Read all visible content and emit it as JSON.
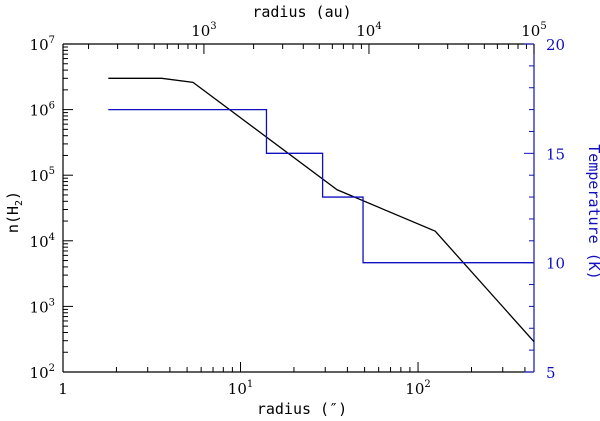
{
  "chart_data": {
    "type": "line",
    "xlabel": "radius (″)",
    "x2label": "radius (au)",
    "ylabel_left": {
      "base": "n(H",
      "sub": "2",
      "close": ")"
    },
    "ylabel_right": "Temperature (K)",
    "xscale": "log",
    "xlim": [
      1,
      450
    ],
    "ylim_left": [
      100,
      10000000
    ],
    "yscale_left": "log",
    "ylim_right": [
      5,
      20
    ],
    "x2scale": "log",
    "x2lim": [
      140,
      100000
    ],
    "x_ticks": [
      {
        "base": "1",
        "exp": ""
      },
      {
        "base": "10",
        "exp": "1"
      },
      {
        "base": "10",
        "exp": "2"
      }
    ],
    "x_tick_values": [
      1,
      10,
      100
    ],
    "x2_ticks": [
      {
        "base": "10",
        "exp": "3"
      },
      {
        "base": "10",
        "exp": "4"
      },
      {
        "base": "10",
        "exp": "5"
      }
    ],
    "x2_tick_values": [
      1000,
      10000,
      100000
    ],
    "y_left_ticks": [
      {
        "base": "10",
        "exp": "2"
      },
      {
        "base": "10",
        "exp": "3"
      },
      {
        "base": "10",
        "exp": "4"
      },
      {
        "base": "10",
        "exp": "5"
      },
      {
        "base": "10",
        "exp": "6"
      },
      {
        "base": "10",
        "exp": "7"
      }
    ],
    "y_left_tick_values": [
      100,
      1000,
      10000,
      100000,
      1000000,
      10000000
    ],
    "y_right_ticks": [
      "5",
      "10",
      "15",
      "20"
    ],
    "y_right_tick_values": [
      5,
      10,
      15,
      20
    ],
    "series": [
      {
        "axis": "left",
        "color": "#000000",
        "points": [
          [
            1.8,
            3000000
          ],
          [
            3.6,
            3000000
          ],
          [
            5.4,
            2600000
          ],
          [
            35,
            60000
          ],
          [
            125,
            14000
          ],
          [
            450,
            290
          ]
        ]
      },
      {
        "axis": "right",
        "color": "#1010c0",
        "points": [
          [
            1.8,
            17
          ],
          [
            14,
            17
          ],
          [
            14,
            15
          ],
          [
            29,
            15
          ],
          [
            29,
            13
          ],
          [
            49,
            13
          ],
          [
            49,
            10
          ],
          [
            450,
            10
          ]
        ]
      }
    ]
  }
}
